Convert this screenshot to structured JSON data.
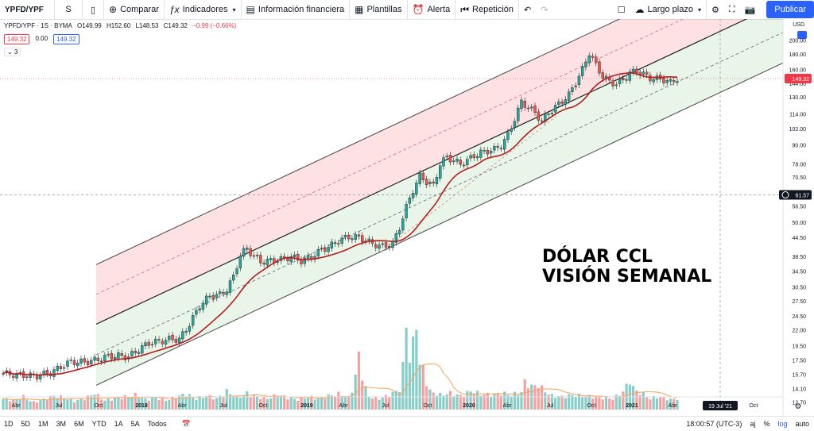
{
  "toolbar": {
    "symbol": "YPFD/YPF",
    "interval": "S",
    "compare": "Comparar",
    "indicators": "Indicadores",
    "financials": "Información financiera",
    "templates": "Plantillas",
    "alert": "Alerta",
    "replay": "Repetición",
    "layout_name": "Largo plazo",
    "publish": "Publicar"
  },
  "legend": {
    "title": "YPFD/YPF · 1S · BYMA",
    "open": "O149.99",
    "high": "H152.60",
    "low": "L148.53",
    "close": "C149.32",
    "change": "−0.99 (−0.66%)",
    "badge_sell": "149.32",
    "badge_mid": "0.00",
    "badge_buy": "149.32",
    "collapsed_count": "3"
  },
  "annotation": {
    "line1": "DÓLAR CCL",
    "line2": "VISIÓN SEMANAL"
  },
  "price_axis": {
    "currency": "USD",
    "last_price_label": "149.32",
    "crosshair_label": "61.57",
    "crosshair_time": "19 Jul '21"
  },
  "chart_data": {
    "type": "candlestick",
    "scale": "log",
    "y_ticks": [
      12.7,
      14.1,
      15.7,
      17.5,
      19.5,
      22.0,
      24.5,
      27.5,
      30.5,
      34.5,
      38.5,
      44.5,
      50.0,
      56.5,
      61.57,
      70.5,
      78.0,
      90.0,
      102.0,
      114.0,
      130.0,
      144.0,
      160.0,
      180.0,
      200.0
    ],
    "y_range": [
      12.0,
      235.0
    ],
    "x_ticks": [
      "Abr",
      "Jul",
      "Oct",
      "2018",
      "Abr",
      "Jul",
      "Oct",
      "2019",
      "Abr",
      "Jul",
      "Oct",
      "2020",
      "Abr",
      "Jul",
      "Oct",
      "2021",
      "Abr",
      "Jul",
      "Oct"
    ],
    "price_path": [
      [
        0,
        15.8
      ],
      [
        5,
        15.6
      ],
      [
        10,
        15.5
      ],
      [
        14,
        15.9
      ],
      [
        17,
        16.6
      ],
      [
        20,
        17.3
      ],
      [
        24,
        17.2
      ],
      [
        28,
        17.6
      ],
      [
        31,
        18.0
      ],
      [
        34,
        18.1
      ],
      [
        37,
        17.9
      ],
      [
        40,
        19.0
      ],
      [
        43,
        19.9
      ],
      [
        46,
        20.2
      ],
      [
        49,
        20.5
      ],
      [
        52,
        20.5
      ],
      [
        55,
        23.0
      ],
      [
        58,
        26.5
      ],
      [
        61,
        28.5
      ],
      [
        64,
        28.8
      ],
      [
        66,
        30.0
      ],
      [
        68,
        33.0
      ],
      [
        70,
        39.0
      ],
      [
        72,
        41.0
      ],
      [
        74,
        38.5
      ],
      [
        76,
        37.0
      ],
      [
        79,
        37.3
      ],
      [
        82,
        37.6
      ],
      [
        85,
        38.5
      ],
      [
        88,
        37.2
      ],
      [
        91,
        38.5
      ],
      [
        94,
        40.5
      ],
      [
        97,
        42.0
      ],
      [
        100,
        44.0
      ],
      [
        103,
        45.0
      ],
      [
        106,
        44.0
      ],
      [
        109,
        42.5
      ],
      [
        112,
        41.5
      ],
      [
        115,
        42.5
      ],
      [
        117,
        48.0
      ],
      [
        119,
        56.0
      ],
      [
        121,
        64.0
      ],
      [
        123,
        71.0
      ],
      [
        125,
        68.0
      ],
      [
        127,
        66.0
      ],
      [
        129,
        78.0
      ],
      [
        131,
        82.0
      ],
      [
        133,
        80.0
      ],
      [
        135,
        78.0
      ],
      [
        137,
        80.0
      ],
      [
        139,
        83.0
      ],
      [
        141,
        85.0
      ],
      [
        143,
        86.0
      ],
      [
        145,
        87.0
      ],
      [
        147,
        90.0
      ],
      [
        149,
        97.0
      ],
      [
        151,
        110.0
      ],
      [
        153,
        125.0
      ],
      [
        155,
        120.0
      ],
      [
        157,
        115.0
      ],
      [
        159,
        108.0
      ],
      [
        161,
        115.0
      ],
      [
        163,
        120.0
      ],
      [
        165,
        126.0
      ],
      [
        167,
        132.0
      ],
      [
        169,
        145.0
      ],
      [
        171,
        160.0
      ],
      [
        173,
        182.0
      ],
      [
        175,
        165.0
      ],
      [
        177,
        152.0
      ],
      [
        179,
        146.0
      ],
      [
        181,
        143.0
      ],
      [
        183,
        148.0
      ],
      [
        185,
        156.0
      ],
      [
        187,
        158.0
      ],
      [
        189,
        154.0
      ],
      [
        191,
        150.0
      ],
      [
        193,
        149.0
      ],
      [
        195,
        148.0
      ],
      [
        197,
        145.0
      ],
      [
        199,
        149.32
      ]
    ],
    "ma_series_name": "",
    "volume_path": [
      [
        0,
        0.12
      ],
      [
        3,
        0.1
      ],
      [
        6,
        0.14
      ],
      [
        9,
        0.08
      ],
      [
        12,
        0.11
      ],
      [
        15,
        0.15
      ],
      [
        18,
        0.13
      ],
      [
        21,
        0.09
      ],
      [
        24,
        0.12
      ],
      [
        27,
        0.18
      ],
      [
        30,
        0.1
      ],
      [
        33,
        0.12
      ],
      [
        36,
        0.14
      ],
      [
        39,
        0.16
      ],
      [
        42,
        0.11
      ],
      [
        45,
        0.13
      ],
      [
        48,
        0.1
      ],
      [
        51,
        0.14
      ],
      [
        54,
        0.17
      ],
      [
        57,
        0.12
      ],
      [
        60,
        0.15
      ],
      [
        63,
        0.12
      ],
      [
        66,
        0.2
      ],
      [
        69,
        0.13
      ],
      [
        72,
        0.18
      ],
      [
        75,
        0.14
      ],
      [
        78,
        0.12
      ],
      [
        81,
        0.16
      ],
      [
        84,
        0.13
      ],
      [
        87,
        0.11
      ],
      [
        90,
        0.14
      ],
      [
        93,
        0.12
      ],
      [
        96,
        0.15
      ],
      [
        99,
        0.17
      ],
      [
        102,
        0.13
      ],
      [
        105,
        0.6
      ],
      [
        108,
        0.14
      ],
      [
        111,
        0.12
      ],
      [
        114,
        0.16
      ],
      [
        117,
        0.22
      ],
      [
        119,
        0.95
      ],
      [
        120,
        0.55
      ],
      [
        121,
        0.7
      ],
      [
        122,
        1.0
      ],
      [
        123,
        0.48
      ],
      [
        124,
        0.45
      ],
      [
        126,
        0.2
      ],
      [
        129,
        0.16
      ],
      [
        132,
        0.18
      ],
      [
        135,
        0.15
      ],
      [
        138,
        0.2
      ],
      [
        141,
        0.17
      ],
      [
        144,
        0.16
      ],
      [
        147,
        0.18
      ],
      [
        150,
        0.16
      ],
      [
        153,
        0.19
      ],
      [
        154,
        0.3
      ],
      [
        156,
        0.25
      ],
      [
        158,
        0.27
      ],
      [
        160,
        0.2
      ],
      [
        162,
        0.15
      ],
      [
        165,
        0.14
      ],
      [
        168,
        0.16
      ],
      [
        171,
        0.15
      ],
      [
        174,
        0.14
      ],
      [
        177,
        0.13
      ],
      [
        180,
        0.12
      ],
      [
        183,
        0.2
      ],
      [
        185,
        0.32
      ],
      [
        186,
        0.24
      ],
      [
        187,
        0.2
      ],
      [
        189,
        0.17
      ],
      [
        191,
        0.12
      ],
      [
        193,
        0.14
      ],
      [
        195,
        0.13
      ],
      [
        197,
        0.11
      ],
      [
        199,
        0.12
      ]
    ]
  },
  "bottom": {
    "ranges": [
      "1D",
      "5D",
      "1M",
      "3M",
      "6M",
      "YTD",
      "1A",
      "5A",
      "Todos"
    ],
    "time": "18:00:57 (UTC-3)",
    "adj": "aj",
    "pct": "%",
    "log": "log",
    "auto": "auto"
  }
}
